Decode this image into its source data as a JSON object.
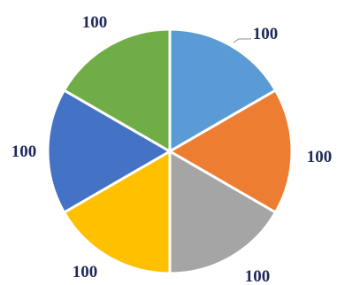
{
  "chart_data": {
    "type": "pie",
    "categories": [
      "",
      "",
      "",
      "",
      "",
      ""
    ],
    "values": [
      100,
      100,
      100,
      100,
      100,
      100
    ],
    "data_labels": [
      "100",
      "100",
      "100",
      "100",
      "100",
      "100"
    ],
    "colors": [
      "#5b9bd5",
      "#ed7d31",
      "#a5a5a5",
      "#ffc000",
      "#4472c4",
      "#70ad47"
    ],
    "start_angle_deg": 0,
    "direction": "clockwise",
    "legend": "none",
    "title": ""
  }
}
